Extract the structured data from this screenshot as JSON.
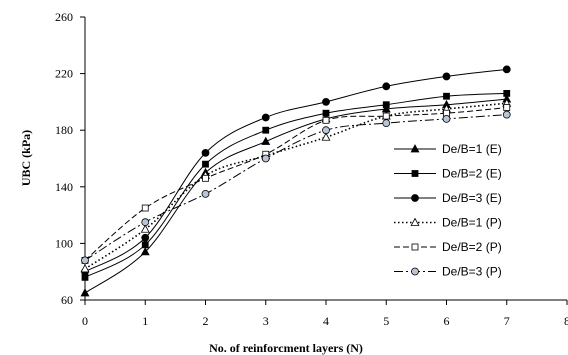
{
  "chart_data": {
    "type": "line",
    "title": "",
    "xlabel": "No. of reinforcment layers (N)",
    "ylabel": "UBC (kPa)",
    "xlim": [
      0,
      8
    ],
    "ylim": [
      60,
      260
    ],
    "x_ticks": [
      0,
      1,
      2,
      3,
      4,
      5,
      6,
      7,
      8
    ],
    "y_ticks": [
      60,
      100,
      140,
      180,
      220,
      260
    ],
    "grid": false,
    "legend_position": "right",
    "x": [
      0,
      1,
      2,
      3,
      4,
      5,
      6,
      7
    ],
    "series": [
      {
        "name": "De/B=1 (E)",
        "values": [
          65,
          94,
          150,
          172,
          188,
          195,
          198,
          202
        ],
        "line": "solid",
        "marker": "triangle",
        "marker_fill": "#000000"
      },
      {
        "name": "De/B=2 (E)",
        "values": [
          76,
          99,
          156,
          180,
          192,
          198,
          204,
          206
        ],
        "line": "solid",
        "marker": "square",
        "marker_fill": "#000000"
      },
      {
        "name": "De/B=3 (E)",
        "values": [
          80,
          104,
          164,
          189,
          200,
          211,
          218,
          223
        ],
        "line": "solid",
        "marker": "circle",
        "marker_fill": "#000000"
      },
      {
        "name": "De/B=1 (P)",
        "values": [
          82,
          110,
          148,
          162,
          175,
          190,
          195,
          199
        ],
        "line": "dotted",
        "marker": "triangle",
        "marker_fill": "#ffffff"
      },
      {
        "name": "De/B=2 (P)",
        "values": [
          88,
          125,
          146,
          163,
          187,
          190,
          192,
          196
        ],
        "line": "dashed",
        "marker": "square",
        "marker_fill": "#ffffff"
      },
      {
        "name": "De/B=3 (P)",
        "values": [
          88,
          115,
          135,
          160,
          180,
          185,
          188,
          191
        ],
        "line": "dashdot",
        "marker": "circle",
        "marker_fill": "#b8c4d8"
      }
    ]
  }
}
